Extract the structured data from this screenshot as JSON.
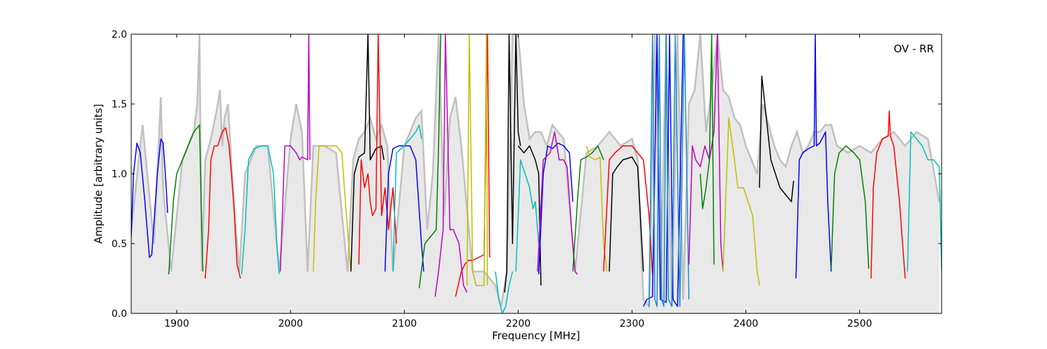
{
  "chart_data": {
    "type": "line",
    "xlabel": "Frequency [MHz]",
    "ylabel": "Amplitude [arbitrary units]",
    "annotation": "OV - RR",
    "xlim": [
      1860,
      2572
    ],
    "ylim": [
      0.0,
      2.0
    ],
    "x_ticks": [
      1900,
      2000,
      2100,
      2200,
      2300,
      2400,
      2500
    ],
    "y_ticks": [
      0.0,
      0.5,
      1.0,
      1.5,
      2.0
    ],
    "x_tick_labels": [
      "1900",
      "2000",
      "2100",
      "2200",
      "2300",
      "2400",
      "2500"
    ],
    "y_tick_labels": [
      "0.0",
      "0.5",
      "1.0",
      "1.5",
      "2.0"
    ],
    "grid": false,
    "background_color": "#c0c0c0",
    "background": {
      "x": [
        1860,
        1870,
        1880,
        1886,
        1888,
        1895,
        1905,
        1915,
        1918,
        1920,
        1922,
        1925,
        1930,
        1935,
        1938,
        1940,
        1942,
        1945,
        1950,
        1955,
        1960,
        1970,
        1980,
        1990,
        2000,
        2005,
        2010,
        2015,
        2020,
        2030,
        2040,
        2050,
        2055,
        2060,
        2065,
        2070,
        2075,
        2080,
        2085,
        2090,
        2100,
        2110,
        2115,
        2120,
        2125,
        2130,
        2135,
        2140,
        2145,
        2150,
        2160,
        2170,
        2180,
        2185,
        2190,
        2195,
        2200,
        2205,
        2210,
        2215,
        2220,
        2225,
        2230,
        2240,
        2250,
        2260,
        2270,
        2280,
        2290,
        2300,
        2305,
        2310,
        2315,
        2320,
        2325,
        2330,
        2335,
        2340,
        2345,
        2350,
        2355,
        2360,
        2365,
        2370,
        2375,
        2380,
        2385,
        2390,
        2395,
        2400,
        2405,
        2410,
        2415,
        2420,
        2425,
        2430,
        2435,
        2440,
        2445,
        2450,
        2455,
        2460,
        2465,
        2470,
        2475,
        2480,
        2490,
        2500,
        2510,
        2520,
        2530,
        2540,
        2550,
        2560,
        2570
      ],
      "y": [
        0.6,
        1.35,
        0.5,
        1.55,
        0.9,
        0.3,
        1.1,
        1.3,
        1.5,
        2.0,
        0.3,
        1.1,
        1.25,
        1.45,
        1.6,
        1.2,
        1.4,
        1.5,
        0.8,
        0.3,
        1.0,
        1.2,
        1.2,
        0.3,
        1.25,
        1.5,
        1.3,
        0.3,
        1.2,
        1.2,
        1.15,
        0.3,
        1.1,
        1.25,
        1.3,
        1.4,
        1.25,
        1.35,
        1.2,
        0.3,
        1.2,
        1.4,
        1.45,
        0.6,
        1.0,
        2.0,
        0.7,
        1.4,
        1.55,
        1.2,
        0.3,
        0.3,
        0.2,
        0.05,
        0.3,
        2.0,
        2.0,
        1.5,
        1.25,
        1.3,
        1.3,
        1.2,
        1.35,
        1.25,
        0.3,
        1.15,
        1.2,
        1.3,
        1.2,
        1.25,
        1.1,
        0.1,
        0.05,
        2.0,
        0.1,
        2.0,
        0.05,
        2.0,
        0.1,
        1.5,
        1.6,
        2.0,
        1.3,
        1.6,
        2.0,
        1.6,
        1.55,
        1.4,
        1.35,
        1.2,
        1.1,
        1.0,
        1.5,
        1.35,
        1.2,
        1.1,
        1.05,
        1.2,
        1.3,
        1.15,
        1.2,
        1.3,
        1.3,
        1.35,
        1.35,
        1.2,
        1.15,
        1.2,
        1.15,
        1.25,
        1.3,
        1.2,
        1.3,
        1.25,
        0.8
      ]
    },
    "series": [
      {
        "color": "#0000ff",
        "x": [
          1860,
          1862,
          1865,
          1868,
          1872,
          1876,
          1878,
          1880,
          1883,
          1886,
          1888,
          1890,
          1892
        ],
        "y": [
          0.55,
          1.0,
          1.22,
          1.15,
          0.8,
          0.4,
          0.42,
          0.65,
          1.0,
          1.25,
          1.22,
          1.0,
          0.72
        ]
      },
      {
        "color": "#008000",
        "x": [
          1893,
          1897,
          1900,
          1905,
          1910,
          1915,
          1920,
          1922,
          1923
        ],
        "y": [
          0.28,
          0.8,
          1.0,
          1.1,
          1.2,
          1.3,
          1.35,
          0.6,
          0.3
        ]
      },
      {
        "color": "#ff0000",
        "x": [
          1925,
          1928,
          1930,
          1933,
          1936,
          1940,
          1943,
          1946,
          1950,
          1953,
          1956
        ],
        "y": [
          0.25,
          0.6,
          1.1,
          1.2,
          1.2,
          1.3,
          1.33,
          1.2,
          0.8,
          0.35,
          0.25
        ]
      },
      {
        "color": "#00bfbf",
        "x": [
          1957,
          1960,
          1963,
          1968,
          1975,
          1980,
          1985,
          1988,
          1990
        ],
        "y": [
          0.28,
          0.6,
          1.1,
          1.18,
          1.2,
          1.2,
          1.0,
          0.5,
          0.28
        ]
      },
      {
        "color": "#bf00bf",
        "x": [
          1991,
          1995,
          2000,
          2005,
          2008,
          2010,
          2015,
          2016,
          2017
        ],
        "y": [
          0.3,
          1.2,
          1.2,
          1.15,
          1.1,
          1.12,
          1.1,
          2.0,
          1.1
        ]
      },
      {
        "color": "#bfbf00",
        "x": [
          2020,
          2022,
          2025,
          2030,
          2035,
          2040,
          2045,
          2050,
          2053
        ],
        "y": [
          0.3,
          0.8,
          1.2,
          1.2,
          1.2,
          1.2,
          1.15,
          0.6,
          0.3
        ]
      },
      {
        "color": "#000000",
        "x": [
          2053,
          2056,
          2060,
          2065,
          2068,
          2070,
          2075,
          2080,
          2082
        ],
        "y": [
          0.3,
          1.0,
          1.12,
          1.15,
          2.0,
          1.1,
          1.18,
          1.2,
          1.1
        ]
      },
      {
        "color": "#ff0000",
        "x": [
          2060,
          2062,
          2065,
          2068,
          2070,
          2072,
          2075,
          2077,
          2080,
          2083,
          2086,
          2090,
          2093
        ],
        "y": [
          0.35,
          1.1,
          0.9,
          1.0,
          0.8,
          0.7,
          0.75,
          2.0,
          0.7,
          0.9,
          0.6,
          0.9,
          0.5
        ]
      },
      {
        "color": "#0000ff",
        "x": [
          2083,
          2086,
          2090,
          2095,
          2100,
          2105,
          2110,
          2115,
          2117
        ],
        "y": [
          0.3,
          1.0,
          1.18,
          1.2,
          1.2,
          1.2,
          1.1,
          0.5,
          0.3
        ]
      },
      {
        "color": "#00bfbf",
        "x": [
          2090,
          2093,
          2100,
          2105,
          2110,
          2113,
          2115
        ],
        "y": [
          0.3,
          1.15,
          1.2,
          1.25,
          1.3,
          1.35,
          1.25
        ]
      },
      {
        "color": "#008000",
        "x": [
          2113,
          2118,
          2123,
          2128,
          2130,
          2132
        ],
        "y": [
          0.18,
          0.5,
          0.55,
          0.6,
          1.2,
          2.0
        ]
      },
      {
        "color": "#bf00bf",
        "x": [
          2127,
          2130,
          2134,
          2136,
          2140,
          2143,
          2148,
          2152,
          2155
        ],
        "y": [
          0.12,
          0.3,
          0.6,
          2.0,
          0.6,
          0.6,
          0.5,
          0.2,
          0.15
        ]
      },
      {
        "color": "#ff0000",
        "x": [
          2145,
          2150,
          2153,
          2156,
          2160,
          2165,
          2170,
          2173,
          2175
        ],
        "y": [
          0.12,
          0.3,
          0.35,
          0.38,
          0.38,
          0.4,
          0.42,
          2.0,
          0.4
        ]
      },
      {
        "color": "#bfbf00",
        "x": [
          2155,
          2157,
          2160,
          2163,
          2167,
          2170,
          2172,
          2173
        ],
        "y": [
          0.2,
          2.0,
          0.3,
          0.2,
          0.2,
          0.2,
          2.0,
          0.2
        ]
      },
      {
        "color": "#00bfbf",
        "x": [
          2180,
          2183,
          2186,
          2189,
          2192,
          2195
        ],
        "y": [
          0.3,
          0.1,
          0.0,
          0.05,
          0.2,
          0.3
        ]
      },
      {
        "color": "#000000",
        "x": [
          2188,
          2190,
          2192,
          2195,
          2198,
          2200,
          2202
        ],
        "y": [
          0.15,
          0.3,
          2.0,
          0.5,
          2.0,
          1.3,
          1.2
        ]
      },
      {
        "color": "#00bfbf",
        "x": [
          2198,
          2202,
          2206,
          2210,
          2213,
          2215,
          2218
        ],
        "y": [
          0.3,
          1.1,
          1.0,
          0.9,
          0.75,
          0.8,
          0.5
        ]
      },
      {
        "color": "#000000",
        "x": [
          2200,
          2205,
          2210,
          2215,
          2218,
          2220
        ],
        "y": [
          1.2,
          1.15,
          1.2,
          1.1,
          1.0,
          0.2
        ]
      },
      {
        "color": "#0000ff",
        "x": [
          2218,
          2222,
          2226,
          2230,
          2235,
          2240,
          2245,
          2248
        ],
        "y": [
          0.28,
          1.0,
          1.2,
          1.18,
          1.22,
          1.2,
          1.15,
          0.8
        ]
      },
      {
        "color": "#bf00bf",
        "x": [
          2217,
          2222,
          2228,
          2232,
          2236,
          2240,
          2243,
          2247,
          2250,
          2252
        ],
        "y": [
          0.3,
          1.1,
          1.15,
          1.3,
          1.1,
          1.1,
          1.05,
          0.6,
          0.3,
          0.28
        ]
      },
      {
        "color": "#008000",
        "x": [
          2248,
          2252,
          2255,
          2260,
          2265,
          2270,
          2275
        ],
        "y": [
          0.3,
          0.8,
          1.1,
          1.12,
          1.15,
          1.2,
          1.1
        ]
      },
      {
        "color": "#bfbf00",
        "x": [
          2260,
          2263,
          2268,
          2272,
          2275,
          2278
        ],
        "y": [
          1.2,
          1.12,
          1.1,
          1.12,
          0.5,
          0.3
        ]
      },
      {
        "color": "#000000",
        "x": [
          2280,
          2283,
          2287,
          2292,
          2300,
          2305,
          2308,
          2310
        ],
        "y": [
          0.3,
          1.0,
          1.05,
          1.1,
          1.12,
          1.05,
          0.6,
          0.3
        ]
      },
      {
        "color": "#ff0000",
        "x": [
          2275,
          2280,
          2285,
          2292,
          2300,
          2305,
          2310,
          2315,
          2318
        ],
        "y": [
          0.3,
          1.1,
          1.15,
          1.2,
          1.2,
          1.15,
          1.1,
          0.7,
          0.28
        ]
      },
      {
        "color": "#0000ff",
        "x": [
          2310,
          2313,
          2318,
          2322,
          2325,
          2330,
          2333,
          2336,
          2340,
          2345
        ],
        "y": [
          0.05,
          0.1,
          0.12,
          2.0,
          0.1,
          0.08,
          2.0,
          0.1,
          0.05,
          2.0
        ]
      },
      {
        "color": "#1c8cc8",
        "x": [
          2315,
          2318,
          2320,
          2322,
          2324,
          2326,
          2328,
          2330,
          2332,
          2335,
          2338,
          2342,
          2346,
          2350
        ],
        "y": [
          0.05,
          2.0,
          0.1,
          0.05,
          2.0,
          0.1,
          0.05,
          2.0,
          0.1,
          0.05,
          2.0,
          0.05,
          2.0,
          0.1
        ]
      },
      {
        "color": "#bf00bf",
        "x": [
          2350,
          2353,
          2356,
          2360,
          2364,
          2368,
          2372,
          2375,
          2378,
          2380
        ],
        "y": [
          0.35,
          1.2,
          1.1,
          1.05,
          1.2,
          1.1,
          1.3,
          2.0,
          0.5,
          0.3
        ]
      },
      {
        "color": "#008000",
        "x": [
          2360,
          2362,
          2365,
          2368,
          2370,
          2372
        ],
        "y": [
          1.0,
          0.75,
          0.9,
          1.1,
          2.0,
          0.35
        ]
      },
      {
        "color": "#bfbf00",
        "x": [
          2380,
          2385,
          2390,
          2393,
          2398,
          2402,
          2406,
          2410,
          2412
        ],
        "y": [
          0.3,
          1.4,
          1.1,
          0.9,
          0.9,
          0.8,
          0.7,
          0.3,
          0.2
        ]
      },
      {
        "color": "#000000",
        "x": [
          2412,
          2414,
          2418,
          2422,
          2426,
          2430,
          2435,
          2440,
          2442
        ],
        "y": [
          0.9,
          1.7,
          1.4,
          1.1,
          1.0,
          0.9,
          0.85,
          0.8,
          0.95
        ]
      },
      {
        "color": "#0000ff",
        "x": [
          2444,
          2447,
          2450,
          2455,
          2460,
          2461,
          2462,
          2465,
          2470,
          2472,
          2475
        ],
        "y": [
          0.25,
          1.1,
          1.15,
          1.18,
          1.2,
          2.0,
          1.2,
          1.22,
          1.3,
          0.8,
          0.3
        ]
      },
      {
        "color": "#008000",
        "x": [
          2475,
          2478,
          2482,
          2488,
          2495,
          2500,
          2505,
          2508
        ],
        "y": [
          0.32,
          1.0,
          1.15,
          1.2,
          1.15,
          1.1,
          0.8,
          0.32
        ]
      },
      {
        "color": "#ff0000",
        "x": [
          2510,
          2512,
          2515,
          2520,
          2525,
          2526,
          2527,
          2530,
          2535,
          2540
        ],
        "y": [
          0.25,
          0.9,
          1.15,
          1.25,
          1.27,
          1.45,
          1.27,
          1.2,
          0.8,
          0.25
        ]
      },
      {
        "color": "#00bfbf",
        "x": [
          2542,
          2545,
          2550,
          2555,
          2560,
          2565,
          2570,
          2572
        ],
        "y": [
          0.3,
          1.3,
          1.25,
          1.2,
          1.1,
          1.1,
          1.05,
          0.3
        ]
      }
    ]
  }
}
